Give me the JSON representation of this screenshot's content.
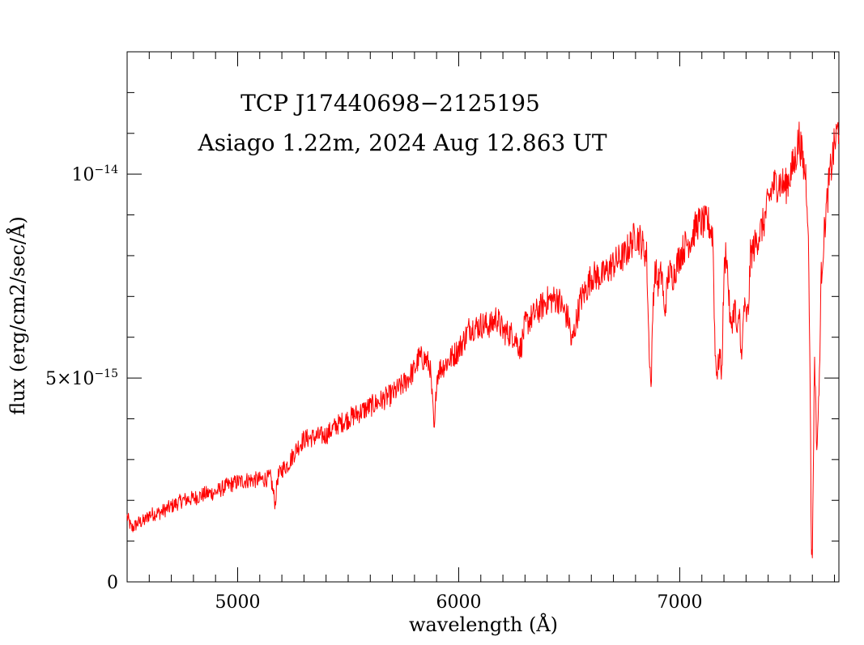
{
  "chart_data": {
    "type": "line",
    "title": "TCP J17440698−2125195",
    "subtitle": "Asiago 1.22m, 2024 Aug 12.863 UT",
    "xlabel": "wavelength (Å)",
    "ylabel": "flux (erg/cm2/sec/Å)",
    "xlim": [
      4500,
      7720
    ],
    "ylim": [
      0,
      1.3e-14
    ],
    "x_ticks": [
      {
        "value": 5000,
        "label": "5000"
      },
      {
        "value": 6000,
        "label": "6000"
      },
      {
        "value": 7000,
        "label": "7000"
      }
    ],
    "y_ticks": [
      {
        "value": 0,
        "label": "0"
      },
      {
        "value": 5e-15,
        "label_base": "5×10",
        "label_exp": "−15"
      },
      {
        "value": 1e-14,
        "label_base": "10",
        "label_exp": "−14"
      }
    ],
    "line_color": "#ff0000",
    "grid": false,
    "series": [
      {
        "x": [
          4500,
          4520,
          4550,
          4580,
          4600,
          4650,
          4700,
          4750,
          4800,
          4850,
          4900,
          4950,
          5000,
          5050,
          5100,
          5150,
          5170,
          5180,
          5200,
          5230,
          5250,
          5270,
          5300,
          5350,
          5400,
          5450,
          5500,
          5550,
          5600,
          5650,
          5700,
          5750,
          5800,
          5820,
          5850,
          5870,
          5880,
          5890,
          5900,
          5910,
          5950,
          6000,
          6030,
          6050,
          6080,
          6100,
          6150,
          6170,
          6200,
          6250,
          6280,
          6300,
          6350,
          6400,
          6450,
          6480,
          6500,
          6510,
          6550,
          6580,
          6600,
          6650,
          6700,
          6750,
          6800,
          6820,
          6850,
          6860,
          6870,
          6880,
          6890,
          6900,
          6920,
          6930,
          6950,
          6970,
          7000,
          7030,
          7050,
          7080,
          7100,
          7130,
          7150,
          7160,
          7170,
          7180,
          7190,
          7200,
          7210,
          7230,
          7250,
          7260,
          7270,
          7280,
          7290,
          7300,
          7310,
          7320,
          7350,
          7380,
          7400,
          7420,
          7450,
          7480,
          7500,
          7520,
          7540,
          7560,
          7570,
          7580,
          7590,
          7595,
          7600,
          7610,
          7620,
          7630,
          7640,
          7660,
          7680,
          7700,
          7720
        ],
        "y": [
          1.6e-15,
          1.3e-15,
          1.45e-15,
          1.5e-15,
          1.65e-15,
          1.7e-15,
          1.85e-15,
          2e-15,
          2.05e-15,
          2.15e-15,
          2.2e-15,
          2.35e-15,
          2.45e-15,
          2.5e-15,
          2.5e-15,
          2.55e-15,
          1.9e-15,
          2.55e-15,
          2.75e-15,
          2.9e-15,
          3.1e-15,
          3.3e-15,
          3.5e-15,
          3.55e-15,
          3.6e-15,
          3.85e-15,
          4e-15,
          4.15e-15,
          4.3e-15,
          4.45e-15,
          4.6e-15,
          4.85e-15,
          5.2e-15,
          5.5e-15,
          5.45e-15,
          5.3e-15,
          4.5e-15,
          3.6e-15,
          5e-15,
          5.2e-15,
          5.4e-15,
          5.7e-15,
          6e-15,
          6.25e-15,
          6.25e-15,
          6.3e-15,
          6.3e-15,
          6.5e-15,
          6.15e-15,
          6.05e-15,
          5.7e-15,
          6.3e-15,
          6.6e-15,
          6.9e-15,
          6.95e-15,
          6.6e-15,
          6.4e-15,
          5.8e-15,
          6.9e-15,
          7.2e-15,
          7.5e-15,
          7.5e-15,
          7.8e-15,
          8e-15,
          8.5e-15,
          8.4e-15,
          8e-15,
          6e-15,
          4.7e-15,
          7e-15,
          7.7e-15,
          7.3e-15,
          7.6e-15,
          6.5e-15,
          7.6e-15,
          7.5e-15,
          8e-15,
          8.3e-15,
          8.4e-15,
          8.8e-15,
          8.8e-15,
          8.8e-15,
          8.5e-15,
          5.6e-15,
          5.1e-15,
          5.6e-15,
          5.1e-15,
          7.5e-15,
          8.2e-15,
          6.2e-15,
          6.8e-15,
          5.9e-15,
          6.7e-15,
          5.3e-15,
          6.8e-15,
          6.5e-15,
          6.6e-15,
          8e-15,
          8.4e-15,
          8.8e-15,
          9.3e-15,
          9.7e-15,
          9.8e-15,
          9.7e-15,
          1e-14,
          1.03e-14,
          1.09e-14,
          1.02e-14,
          1e-14,
          9e-15,
          5e-15,
          8e-16,
          7e-16,
          5.6e-15,
          3.2e-15,
          4.6e-15,
          7.5e-15,
          9e-15,
          1e-14,
          1.07e-14,
          1.12e-14
        ]
      }
    ]
  }
}
